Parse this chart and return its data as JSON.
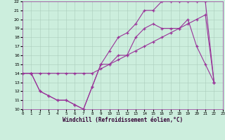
{
  "xlabel": "Windchill (Refroidissement éolien,°C)",
  "bg_color": "#cceedd",
  "line_color": "#993399",
  "xlim": [
    0,
    23
  ],
  "ylim": [
    10,
    22
  ],
  "xticks": [
    0,
    1,
    2,
    3,
    4,
    5,
    6,
    7,
    8,
    9,
    10,
    11,
    12,
    13,
    14,
    15,
    16,
    17,
    18,
    19,
    20,
    21,
    22,
    23
  ],
  "yticks": [
    10,
    11,
    12,
    13,
    14,
    15,
    16,
    17,
    18,
    19,
    20,
    21,
    22
  ],
  "line1_x": [
    0,
    1,
    2,
    3,
    4,
    5,
    6,
    7,
    8,
    9,
    10,
    11,
    12,
    13,
    14,
    15,
    16,
    17,
    18,
    19,
    20,
    21,
    22
  ],
  "line1_y": [
    14,
    14,
    12,
    11.5,
    11,
    11,
    10.5,
    10,
    12.5,
    15,
    15,
    16,
    16,
    18,
    19,
    19.5,
    19,
    19,
    19,
    20,
    17,
    15,
    13
  ],
  "line2_x": [
    0,
    1,
    2,
    3,
    4,
    5,
    6,
    7,
    8,
    9,
    10,
    11,
    12,
    13,
    14,
    15,
    16,
    17,
    18,
    19,
    20,
    21,
    22
  ],
  "line2_y": [
    14,
    14,
    12,
    11.5,
    11,
    11,
    10.5,
    10,
    12.5,
    15,
    16.5,
    18,
    18.5,
    19.5,
    21,
    21,
    22,
    22,
    22,
    22,
    22,
    22,
    13
  ],
  "line3_x": [
    0,
    1,
    2,
    3,
    4,
    5,
    6,
    7,
    8,
    9,
    10,
    11,
    12,
    13,
    14,
    15,
    16,
    17,
    18,
    19,
    20,
    21,
    22
  ],
  "line3_y": [
    14,
    14,
    14,
    14,
    14,
    14,
    14,
    14,
    14,
    14.5,
    15,
    15.5,
    16,
    16.5,
    17,
    17.5,
    18,
    18.5,
    19,
    19.5,
    20,
    20.5,
    13
  ]
}
